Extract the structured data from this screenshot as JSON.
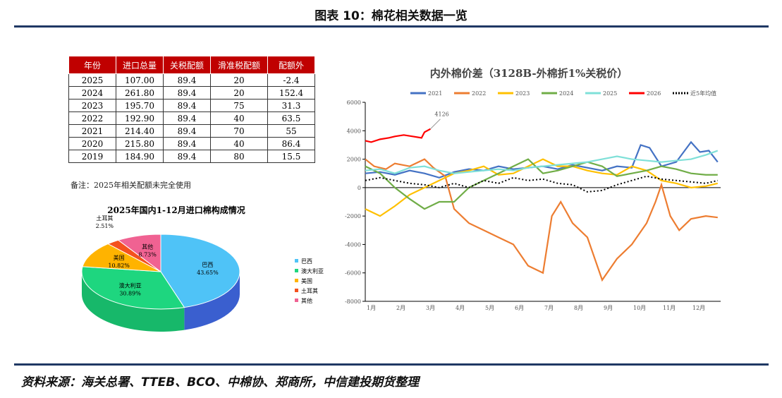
{
  "title": "图表 10：棉花相关数据一览",
  "table": {
    "headers": [
      "年份",
      "进口总量",
      "关税配额",
      "滑准税配额",
      "配额外"
    ],
    "rows": [
      [
        "2025",
        "107.00",
        "89.4",
        "20",
        "-2.4"
      ],
      [
        "2024",
        "261.80",
        "89.4",
        "20",
        "152.4"
      ],
      [
        "2023",
        "195.70",
        "89.4",
        "75",
        "31.3"
      ],
      [
        "2022",
        "192.90",
        "89.4",
        "40",
        "63.5"
      ],
      [
        "2021",
        "214.40",
        "89.4",
        "70",
        "55"
      ],
      [
        "2020",
        "215.80",
        "89.4",
        "40",
        "86.4"
      ],
      [
        "2019",
        "184.90",
        "89.4",
        "80",
        "15.5"
      ]
    ]
  },
  "note": "备注：2025年相关配额未完全使用",
  "source": "资料来源：海关总署、TTEB、BCO、中棉协、郑商所，中信建投期货整理",
  "chart_data": [
    {
      "type": "pie",
      "title": "2025年国内1-12月进口棉构成情况",
      "slices": [
        {
          "name": "巴西",
          "value": 43.65,
          "label": "43.65%",
          "color": "#4fc3f7"
        },
        {
          "name": "澳大利亚",
          "value": 30.89,
          "label": "30.89%",
          "color": "#1ed67f"
        },
        {
          "name": "美国",
          "value": 10.82,
          "label": "10.82%",
          "color": "#ffb300"
        },
        {
          "name": "土耳其",
          "value": 2.51,
          "label": "2.51%",
          "color": "#f4511e"
        },
        {
          "name": "其他",
          "value": 8.73,
          "label": "8.73%",
          "color": "#f06292"
        }
      ],
      "legend": "right"
    },
    {
      "type": "line",
      "title": "内外棉价差（3128B-外棉折1%关税价）",
      "ylim": [
        -8000,
        6000
      ],
      "yticks": [
        6000,
        4000,
        2000,
        0,
        -2000,
        -4000,
        -6000,
        -8000
      ],
      "xticks": [
        "1月",
        "2月",
        "3月",
        "4月",
        "5月",
        "6月",
        "7月",
        "8月",
        "9月",
        "10月",
        "11月",
        "12月"
      ],
      "annotation": "4126",
      "legend": "top",
      "series": [
        {
          "name": "2021",
          "color": "#4472c4",
          "x": [
            1,
            1.5,
            2,
            2.5,
            3,
            3.5,
            4,
            4.5,
            5,
            5.5,
            6,
            6.5,
            7,
            7.5,
            8,
            8.5,
            9,
            9.5,
            10,
            10.3,
            10.6,
            11,
            11.5,
            12,
            12.3,
            12.6,
            12.9
          ],
          "y": [
            1000,
            1100,
            900,
            1200,
            1000,
            700,
            1100,
            1300,
            1200,
            1500,
            1300,
            1400,
            1500,
            1300,
            1600,
            1400,
            1200,
            1500,
            1400,
            3000,
            2800,
            1500,
            1800,
            3200,
            2500,
            2600,
            1800
          ]
        },
        {
          "name": "2022",
          "color": "#ed7d31",
          "x": [
            1,
            1.3,
            1.7,
            2,
            2.5,
            3,
            3.3,
            3.7,
            4,
            4.5,
            5,
            5.5,
            6,
            6.5,
            7,
            7.3,
            7.6,
            8,
            8.5,
            9,
            9.5,
            10,
            10.5,
            10.8,
            11,
            11.3,
            11.6,
            12,
            12.5,
            12.9
          ],
          "y": [
            2000,
            1500,
            1300,
            1700,
            1500,
            2000,
            1400,
            800,
            -1500,
            -2500,
            -3000,
            -3500,
            -4000,
            -5500,
            -6000,
            -2000,
            -1000,
            -2500,
            -3500,
            -6500,
            -5000,
            -4000,
            -2500,
            -1000,
            200,
            -2000,
            -3000,
            -2200,
            -2000,
            -2100
          ]
        },
        {
          "name": "2023",
          "color": "#ffc000",
          "x": [
            1,
            1.5,
            2,
            2.5,
            3,
            3.5,
            4,
            4.5,
            5,
            5.5,
            6,
            6.5,
            7,
            7.5,
            8,
            8.5,
            9,
            9.5,
            10,
            10.5,
            11,
            11.5,
            12,
            12.5,
            12.9
          ],
          "y": [
            -1500,
            -2000,
            -1300,
            -500,
            0,
            500,
            1000,
            1200,
            1500,
            900,
            1000,
            1500,
            2000,
            1500,
            1500,
            1200,
            1000,
            900,
            1500,
            1200,
            500,
            300,
            0,
            100,
            300
          ]
        },
        {
          "name": "2024",
          "color": "#70ad47",
          "x": [
            1,
            1.5,
            2,
            2.5,
            3,
            3.5,
            4,
            4.5,
            5,
            5.5,
            6,
            6.5,
            7,
            7.5,
            8,
            8.5,
            9,
            9.5,
            10,
            10.5,
            11,
            11.5,
            12,
            12.5,
            12.9
          ],
          "y": [
            1500,
            1000,
            0,
            -800,
            -1500,
            -1000,
            -1000,
            0,
            500,
            1000,
            1500,
            2000,
            1000,
            1200,
            1500,
            1800,
            1500,
            800,
            1000,
            1200,
            1500,
            1300,
            1000,
            900,
            900
          ]
        },
        {
          "name": "2025",
          "color": "#7fe0d8",
          "x": [
            1,
            1.5,
            2,
            2.5,
            3,
            3.5,
            4,
            4.5,
            5,
            5.5,
            6,
            6.5,
            7,
            7.5,
            8,
            8.5,
            9,
            9.5,
            10,
            10.5,
            11,
            11.5,
            12,
            12.5,
            12.9
          ],
          "y": [
            1200,
            1300,
            1000,
            1400,
            1500,
            1200,
            1000,
            1100,
            1200,
            1300,
            1200,
            1400,
            1500,
            1600,
            1700,
            1800,
            2000,
            2200,
            2000,
            1900,
            1800,
            1900,
            2000,
            2300,
            2600
          ]
        },
        {
          "name": "2026",
          "color": "#ff0000",
          "x": [
            1,
            1.2,
            1.5,
            1.8,
            2,
            2.3,
            2.6,
            2.9,
            3,
            3.2
          ],
          "y": [
            3300,
            3200,
            3400,
            3500,
            3600,
            3700,
            3600,
            3500,
            3900,
            4126
          ]
        },
        {
          "name": "近5年均值",
          "color": "#000000",
          "dashed": true,
          "x": [
            1,
            1.5,
            2,
            2.5,
            3,
            3.5,
            4,
            4.5,
            5,
            5.5,
            6,
            6.5,
            7,
            7.5,
            8,
            8.5,
            9,
            9.5,
            10,
            10.5,
            11,
            11.5,
            12,
            12.5,
            12.9
          ],
          "y": [
            500,
            700,
            500,
            300,
            200,
            0,
            300,
            0,
            500,
            300,
            700,
            500,
            600,
            300,
            200,
            -300,
            -200,
            200,
            500,
            800,
            600,
            500,
            400,
            300,
            500
          ]
        }
      ]
    }
  ]
}
